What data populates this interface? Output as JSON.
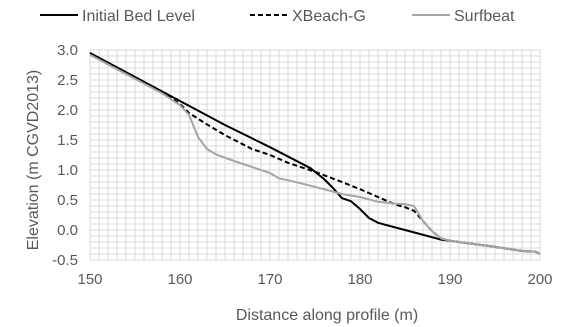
{
  "chart_data": {
    "type": "line",
    "title": "",
    "xlabel": "Distance along profile (m)",
    "ylabel": "Elevation (m CGVD2013)",
    "xlim": [
      150,
      200
    ],
    "ylim": [
      -0.5,
      3.0
    ],
    "xticks": [
      "150",
      "160",
      "170",
      "180",
      "190",
      "200"
    ],
    "yticks": [
      "-0.5",
      "0.0",
      "0.5",
      "1.0",
      "1.5",
      "2.0",
      "2.5",
      "3.0"
    ],
    "grid": "both",
    "legend_position": "top",
    "series": [
      {
        "name": "Initial Bed Level",
        "color": "#000000",
        "style": "solid",
        "points": [
          [
            150,
            2.95
          ],
          [
            160,
            2.15
          ],
          [
            165,
            1.75
          ],
          [
            170,
            1.38
          ],
          [
            174.5,
            1.03
          ],
          [
            176,
            0.85
          ],
          [
            177,
            0.7
          ],
          [
            178,
            0.53
          ],
          [
            179,
            0.48
          ],
          [
            180,
            0.35
          ],
          [
            181,
            0.2
          ],
          [
            182,
            0.12
          ],
          [
            184,
            0.04
          ],
          [
            186,
            -0.04
          ],
          [
            188,
            -0.12
          ],
          [
            189,
            -0.16
          ],
          [
            190,
            -0.18
          ],
          [
            192,
            -0.22
          ],
          [
            195,
            -0.28
          ],
          [
            198,
            -0.35
          ],
          [
            199.5,
            -0.36
          ],
          [
            200,
            -0.4
          ]
        ]
      },
      {
        "name": "XBeach-G",
        "color": "#000000",
        "style": "dashed",
        "points": [
          [
            150,
            2.95
          ],
          [
            154,
            2.62
          ],
          [
            157,
            2.38
          ],
          [
            159,
            2.2
          ],
          [
            160,
            2.1
          ],
          [
            161,
            1.95
          ],
          [
            163,
            1.76
          ],
          [
            165,
            1.58
          ],
          [
            168,
            1.35
          ],
          [
            170,
            1.25
          ],
          [
            172,
            1.12
          ],
          [
            175,
            0.97
          ],
          [
            178,
            0.8
          ],
          [
            180,
            0.68
          ],
          [
            182,
            0.55
          ],
          [
            184,
            0.42
          ],
          [
            185,
            0.38
          ],
          [
            186,
            0.32
          ],
          [
            187,
            0.15
          ],
          [
            188,
            -0.02
          ],
          [
            189,
            -0.14
          ],
          [
            190,
            -0.18
          ],
          [
            192,
            -0.22
          ],
          [
            195,
            -0.28
          ],
          [
            198,
            -0.35
          ],
          [
            199.5,
            -0.36
          ],
          [
            200,
            -0.4
          ]
        ]
      },
      {
        "name": "Surfbeat",
        "color": "#a6a6a6",
        "style": "solid",
        "points": [
          [
            150,
            2.92
          ],
          [
            155,
            2.52
          ],
          [
            158,
            2.28
          ],
          [
            160,
            2.08
          ],
          [
            161,
            1.92
          ],
          [
            162,
            1.55
          ],
          [
            163,
            1.35
          ],
          [
            164,
            1.26
          ],
          [
            166,
            1.15
          ],
          [
            168,
            1.05
          ],
          [
            170,
            0.95
          ],
          [
            171,
            0.86
          ],
          [
            172,
            0.83
          ],
          [
            175,
            0.72
          ],
          [
            178,
            0.6
          ],
          [
            180,
            0.55
          ],
          [
            182,
            0.47
          ],
          [
            184,
            0.44
          ],
          [
            185,
            0.43
          ],
          [
            186,
            0.4
          ],
          [
            187,
            0.15
          ],
          [
            188,
            -0.02
          ],
          [
            189,
            -0.14
          ],
          [
            190,
            -0.18
          ],
          [
            192,
            -0.22
          ],
          [
            195,
            -0.28
          ],
          [
            198,
            -0.35
          ],
          [
            199.5,
            -0.36
          ],
          [
            200,
            -0.4
          ]
        ]
      }
    ]
  }
}
